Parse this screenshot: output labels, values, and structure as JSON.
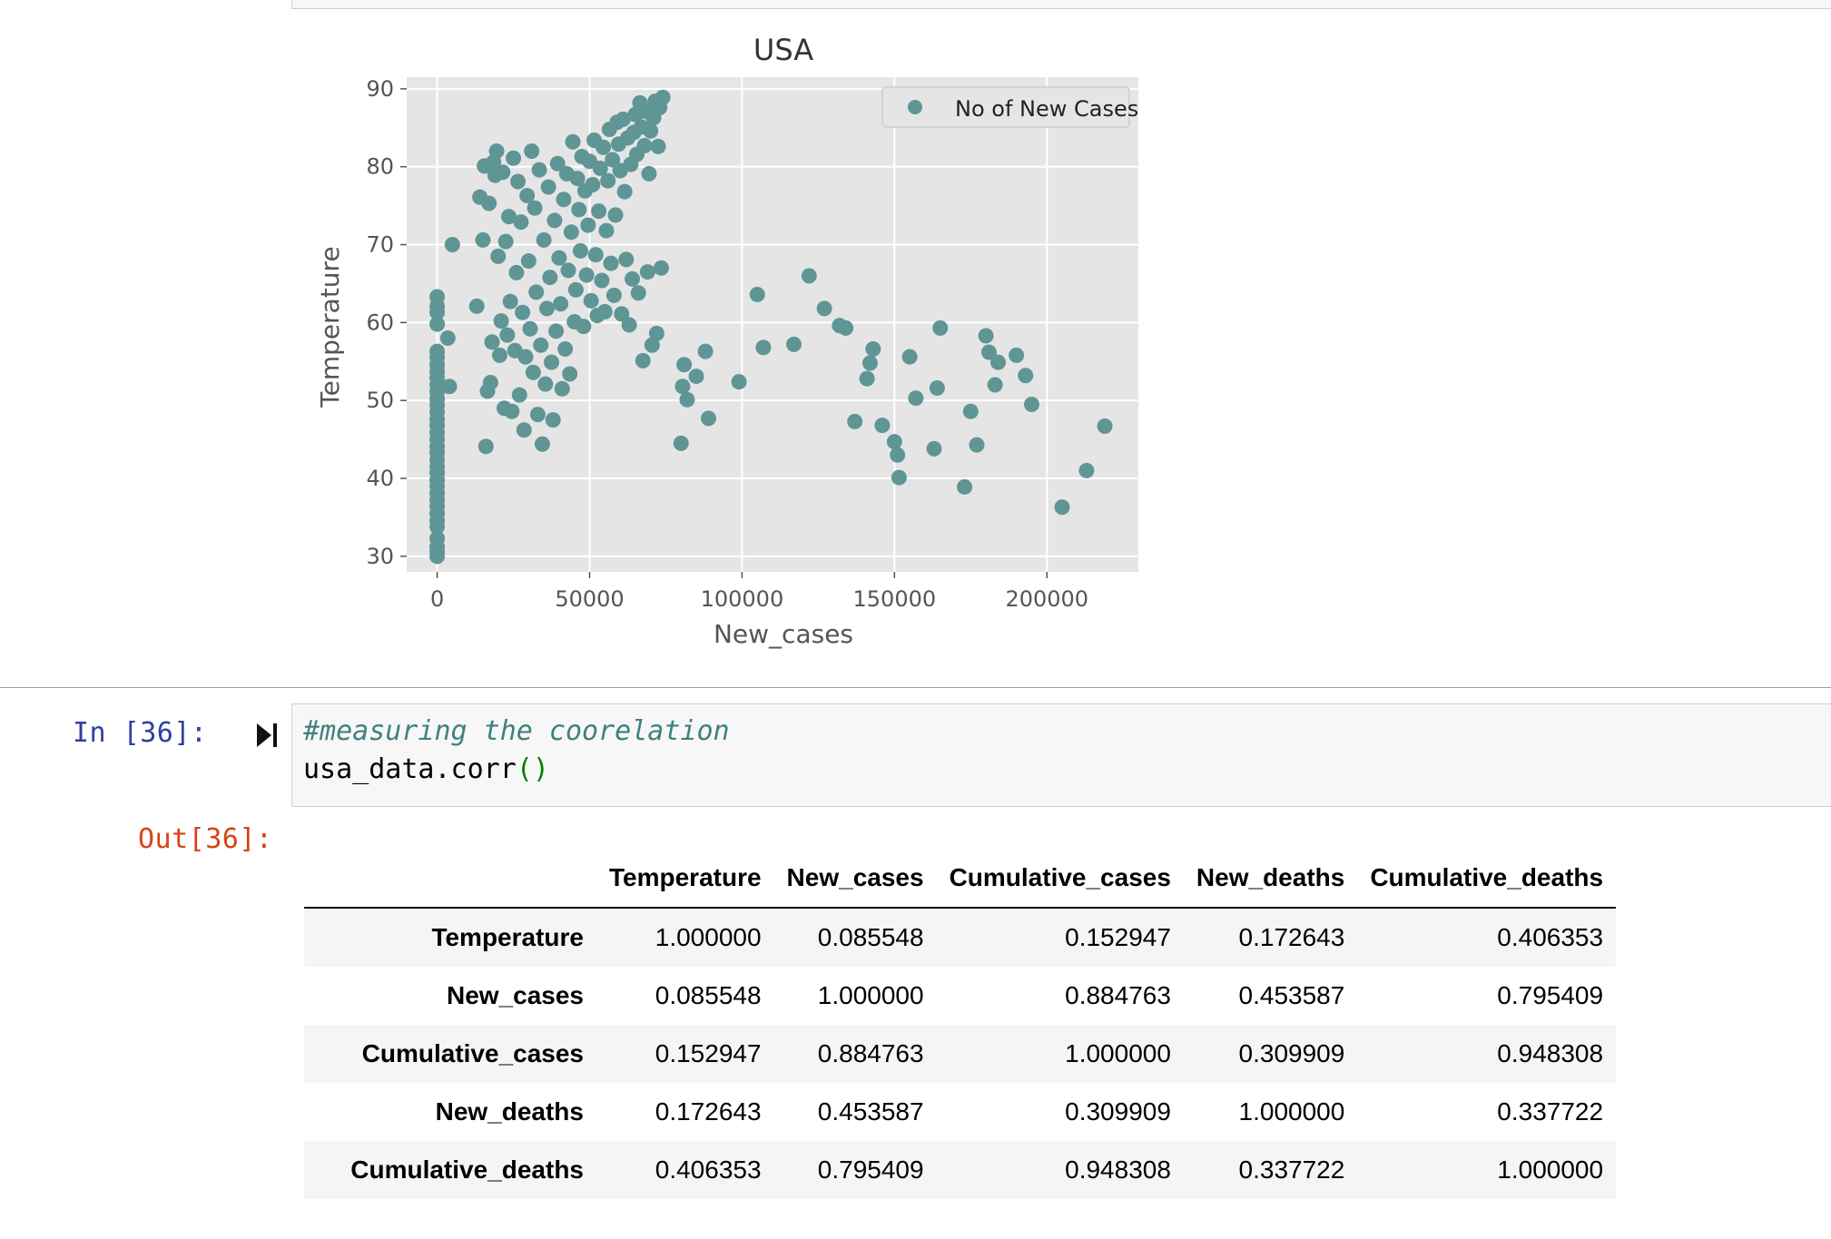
{
  "notebook": {
    "cell_in": {
      "prompt": "In [36]:",
      "code_comment": "#measuring the coorelation",
      "code_main": "usa_data.corr",
      "code_parens": "()"
    },
    "cell_out": {
      "prompt": "Out[36]:"
    }
  },
  "colors": {
    "marker": "#5f9595",
    "plot_bg": "#e5e5e5",
    "grid": "#ffffff",
    "in_prompt": "#303f9f",
    "out_prompt": "#d84315"
  },
  "chart_data": {
    "type": "scatter",
    "title": "USA",
    "xlabel": "New_cases",
    "ylabel": "Temperature",
    "xlim": [
      -10000,
      230000
    ],
    "ylim": [
      28,
      91.5
    ],
    "xticks": [
      0,
      50000,
      100000,
      150000,
      200000
    ],
    "yticks": [
      30,
      40,
      50,
      60,
      70,
      80,
      90
    ],
    "grid": true,
    "legend": {
      "placement": "top-right",
      "entries": [
        "No of New Cases"
      ]
    },
    "series": [
      {
        "name": "No of New Cases",
        "points": [
          [
            0,
            30
          ],
          [
            0,
            30.6
          ],
          [
            0,
            31.2
          ],
          [
            0,
            32.3
          ],
          [
            0,
            33.8
          ],
          [
            0,
            34.6
          ],
          [
            0,
            35.5
          ],
          [
            0,
            36.4
          ],
          [
            0,
            37.2
          ],
          [
            0,
            38.1
          ],
          [
            0,
            39
          ],
          [
            0,
            39.8
          ],
          [
            0,
            40.7
          ],
          [
            0,
            41.5
          ],
          [
            0,
            42.4
          ],
          [
            0,
            43.3
          ],
          [
            0,
            44.1
          ],
          [
            0,
            45
          ],
          [
            0,
            45.9
          ],
          [
            0,
            46.8
          ],
          [
            0,
            47.6
          ],
          [
            0,
            48.5
          ],
          [
            0,
            49.4
          ],
          [
            0,
            50.2
          ],
          [
            0,
            51.1
          ],
          [
            0,
            52
          ],
          [
            0,
            52.9
          ],
          [
            0,
            53.7
          ],
          [
            0,
            54.6
          ],
          [
            0,
            55.5
          ],
          [
            0,
            56.3
          ],
          [
            0,
            59.8
          ],
          [
            0,
            61.3
          ],
          [
            0,
            62.1
          ],
          [
            0,
            63.3
          ],
          [
            3500,
            58
          ],
          [
            4000,
            51.8
          ],
          [
            5000,
            70
          ],
          [
            13000,
            62.1
          ],
          [
            14000,
            76.1
          ],
          [
            15000,
            70.6
          ],
          [
            15500,
            80.1
          ],
          [
            16000,
            44.1
          ],
          [
            16500,
            51.2
          ],
          [
            17000,
            75.3
          ],
          [
            17500,
            52.3
          ],
          [
            18000,
            57.5
          ],
          [
            18500,
            80.6
          ],
          [
            19000,
            78.9
          ],
          [
            19500,
            82
          ],
          [
            20000,
            68.5
          ],
          [
            20500,
            55.8
          ],
          [
            21000,
            60.2
          ],
          [
            21500,
            79.3
          ],
          [
            22000,
            49
          ],
          [
            22500,
            70.4
          ],
          [
            23000,
            58.4
          ],
          [
            23500,
            73.6
          ],
          [
            24000,
            62.7
          ],
          [
            24500,
            48.6
          ],
          [
            25000,
            81.1
          ],
          [
            25500,
            56.4
          ],
          [
            26000,
            66.4
          ],
          [
            26500,
            78.1
          ],
          [
            27000,
            50.7
          ],
          [
            27500,
            72.9
          ],
          [
            28000,
            61.3
          ],
          [
            28500,
            46.2
          ],
          [
            29000,
            55.6
          ],
          [
            29500,
            76.3
          ],
          [
            30000,
            67.9
          ],
          [
            30500,
            59.2
          ],
          [
            31000,
            82
          ],
          [
            31500,
            53.6
          ],
          [
            32000,
            74.7
          ],
          [
            32500,
            63.9
          ],
          [
            33000,
            48.2
          ],
          [
            33500,
            79.6
          ],
          [
            34000,
            57.1
          ],
          [
            34500,
            44.4
          ],
          [
            35000,
            70.6
          ],
          [
            35500,
            52.1
          ],
          [
            36000,
            61.8
          ],
          [
            36500,
            77.4
          ],
          [
            37000,
            65.8
          ],
          [
            37500,
            54.9
          ],
          [
            38000,
            47.5
          ],
          [
            38500,
            73.1
          ],
          [
            39000,
            58.9
          ],
          [
            39500,
            80.4
          ],
          [
            40000,
            68.3
          ],
          [
            40500,
            62.4
          ],
          [
            41000,
            51.5
          ],
          [
            41500,
            75.8
          ],
          [
            42000,
            56.6
          ],
          [
            42500,
            79.1
          ],
          [
            43000,
            66.7
          ],
          [
            43500,
            53.4
          ],
          [
            44000,
            71.6
          ],
          [
            44500,
            83.2
          ],
          [
            45000,
            60.1
          ],
          [
            45500,
            64.2
          ],
          [
            46000,
            78.5
          ],
          [
            46500,
            74.5
          ],
          [
            47000,
            69.2
          ],
          [
            47500,
            81.3
          ],
          [
            48000,
            59.5
          ],
          [
            48500,
            76.9
          ],
          [
            49000,
            66.1
          ],
          [
            49500,
            72.5
          ],
          [
            50000,
            80.7
          ],
          [
            50500,
            62.8
          ],
          [
            51000,
            77.7
          ],
          [
            51500,
            83.4
          ],
          [
            52000,
            68.7
          ],
          [
            52500,
            60.9
          ],
          [
            53000,
            74.3
          ],
          [
            53500,
            79.8
          ],
          [
            54000,
            65.4
          ],
          [
            54500,
            82.5
          ],
          [
            55000,
            61.4
          ],
          [
            55500,
            71.8
          ],
          [
            56000,
            78.2
          ],
          [
            56500,
            84.8
          ],
          [
            57000,
            67.6
          ],
          [
            57500,
            80.9
          ],
          [
            58000,
            63.5
          ],
          [
            58500,
            73.8
          ],
          [
            59000,
            85.7
          ],
          [
            59500,
            82.9
          ],
          [
            60000,
            79.5
          ],
          [
            60500,
            61.1
          ],
          [
            61000,
            86.1
          ],
          [
            61500,
            76.8
          ],
          [
            62000,
            68.1
          ],
          [
            62500,
            83.7
          ],
          [
            63000,
            59.7
          ],
          [
            63500,
            80.3
          ],
          [
            64000,
            65.6
          ],
          [
            64500,
            84.4
          ],
          [
            65000,
            86.7
          ],
          [
            65500,
            81.6
          ],
          [
            66000,
            63.8
          ],
          [
            66500,
            88.2
          ],
          [
            67000,
            85.1
          ],
          [
            67500,
            55.1
          ],
          [
            68000,
            82.7
          ],
          [
            68500,
            87.1
          ],
          [
            69000,
            66.5
          ],
          [
            69500,
            79.1
          ],
          [
            70000,
            84.6
          ],
          [
            70500,
            57.1
          ],
          [
            71000,
            86.3
          ],
          [
            71500,
            88.4
          ],
          [
            72000,
            58.6
          ],
          [
            72500,
            82.6
          ],
          [
            73000,
            87.6
          ],
          [
            73500,
            67
          ],
          [
            74000,
            88.9
          ],
          [
            80000,
            44.5
          ],
          [
            80500,
            51.8
          ],
          [
            81000,
            54.6
          ],
          [
            82000,
            50.1
          ],
          [
            85000,
            53.1
          ],
          [
            88000,
            56.3
          ],
          [
            89000,
            47.7
          ],
          [
            99000,
            52.4
          ],
          [
            105000,
            63.6
          ],
          [
            107000,
            56.8
          ],
          [
            117000,
            57.2
          ],
          [
            122000,
            66
          ],
          [
            127000,
            61.8
          ],
          [
            132000,
            59.6
          ],
          [
            134000,
            59.3
          ],
          [
            137000,
            47.3
          ],
          [
            141000,
            52.8
          ],
          [
            142000,
            54.8
          ],
          [
            143000,
            56.6
          ],
          [
            146000,
            46.8
          ],
          [
            150000,
            44.7
          ],
          [
            151000,
            43
          ],
          [
            151500,
            40.1
          ],
          [
            155000,
            55.6
          ],
          [
            157000,
            50.3
          ],
          [
            163000,
            43.8
          ],
          [
            164000,
            51.6
          ],
          [
            165000,
            59.3
          ],
          [
            173000,
            38.9
          ],
          [
            175000,
            48.6
          ],
          [
            177000,
            44.3
          ],
          [
            180000,
            58.3
          ],
          [
            181000,
            56.2
          ],
          [
            183000,
            52
          ],
          [
            184000,
            54.9
          ],
          [
            190000,
            55.8
          ],
          [
            193000,
            53.2
          ],
          [
            195000,
            49.5
          ],
          [
            205000,
            36.3
          ],
          [
            213000,
            41
          ],
          [
            219000,
            46.7
          ]
        ]
      }
    ]
  },
  "table": {
    "columns": [
      "Temperature",
      "New_cases",
      "Cumulative_cases",
      "New_deaths",
      "Cumulative_deaths"
    ],
    "rows": [
      {
        "label": "Temperature",
        "values": [
          "1.000000",
          "0.085548",
          "0.152947",
          "0.172643",
          "0.406353"
        ]
      },
      {
        "label": "New_cases",
        "values": [
          "0.085548",
          "1.000000",
          "0.884763",
          "0.453587",
          "0.795409"
        ]
      },
      {
        "label": "Cumulative_cases",
        "values": [
          "0.152947",
          "0.884763",
          "1.000000",
          "0.309909",
          "0.948308"
        ]
      },
      {
        "label": "New_deaths",
        "values": [
          "0.172643",
          "0.453587",
          "0.309909",
          "1.000000",
          "0.337722"
        ]
      },
      {
        "label": "Cumulative_deaths",
        "values": [
          "0.406353",
          "0.795409",
          "0.948308",
          "0.337722",
          "1.000000"
        ]
      }
    ]
  }
}
